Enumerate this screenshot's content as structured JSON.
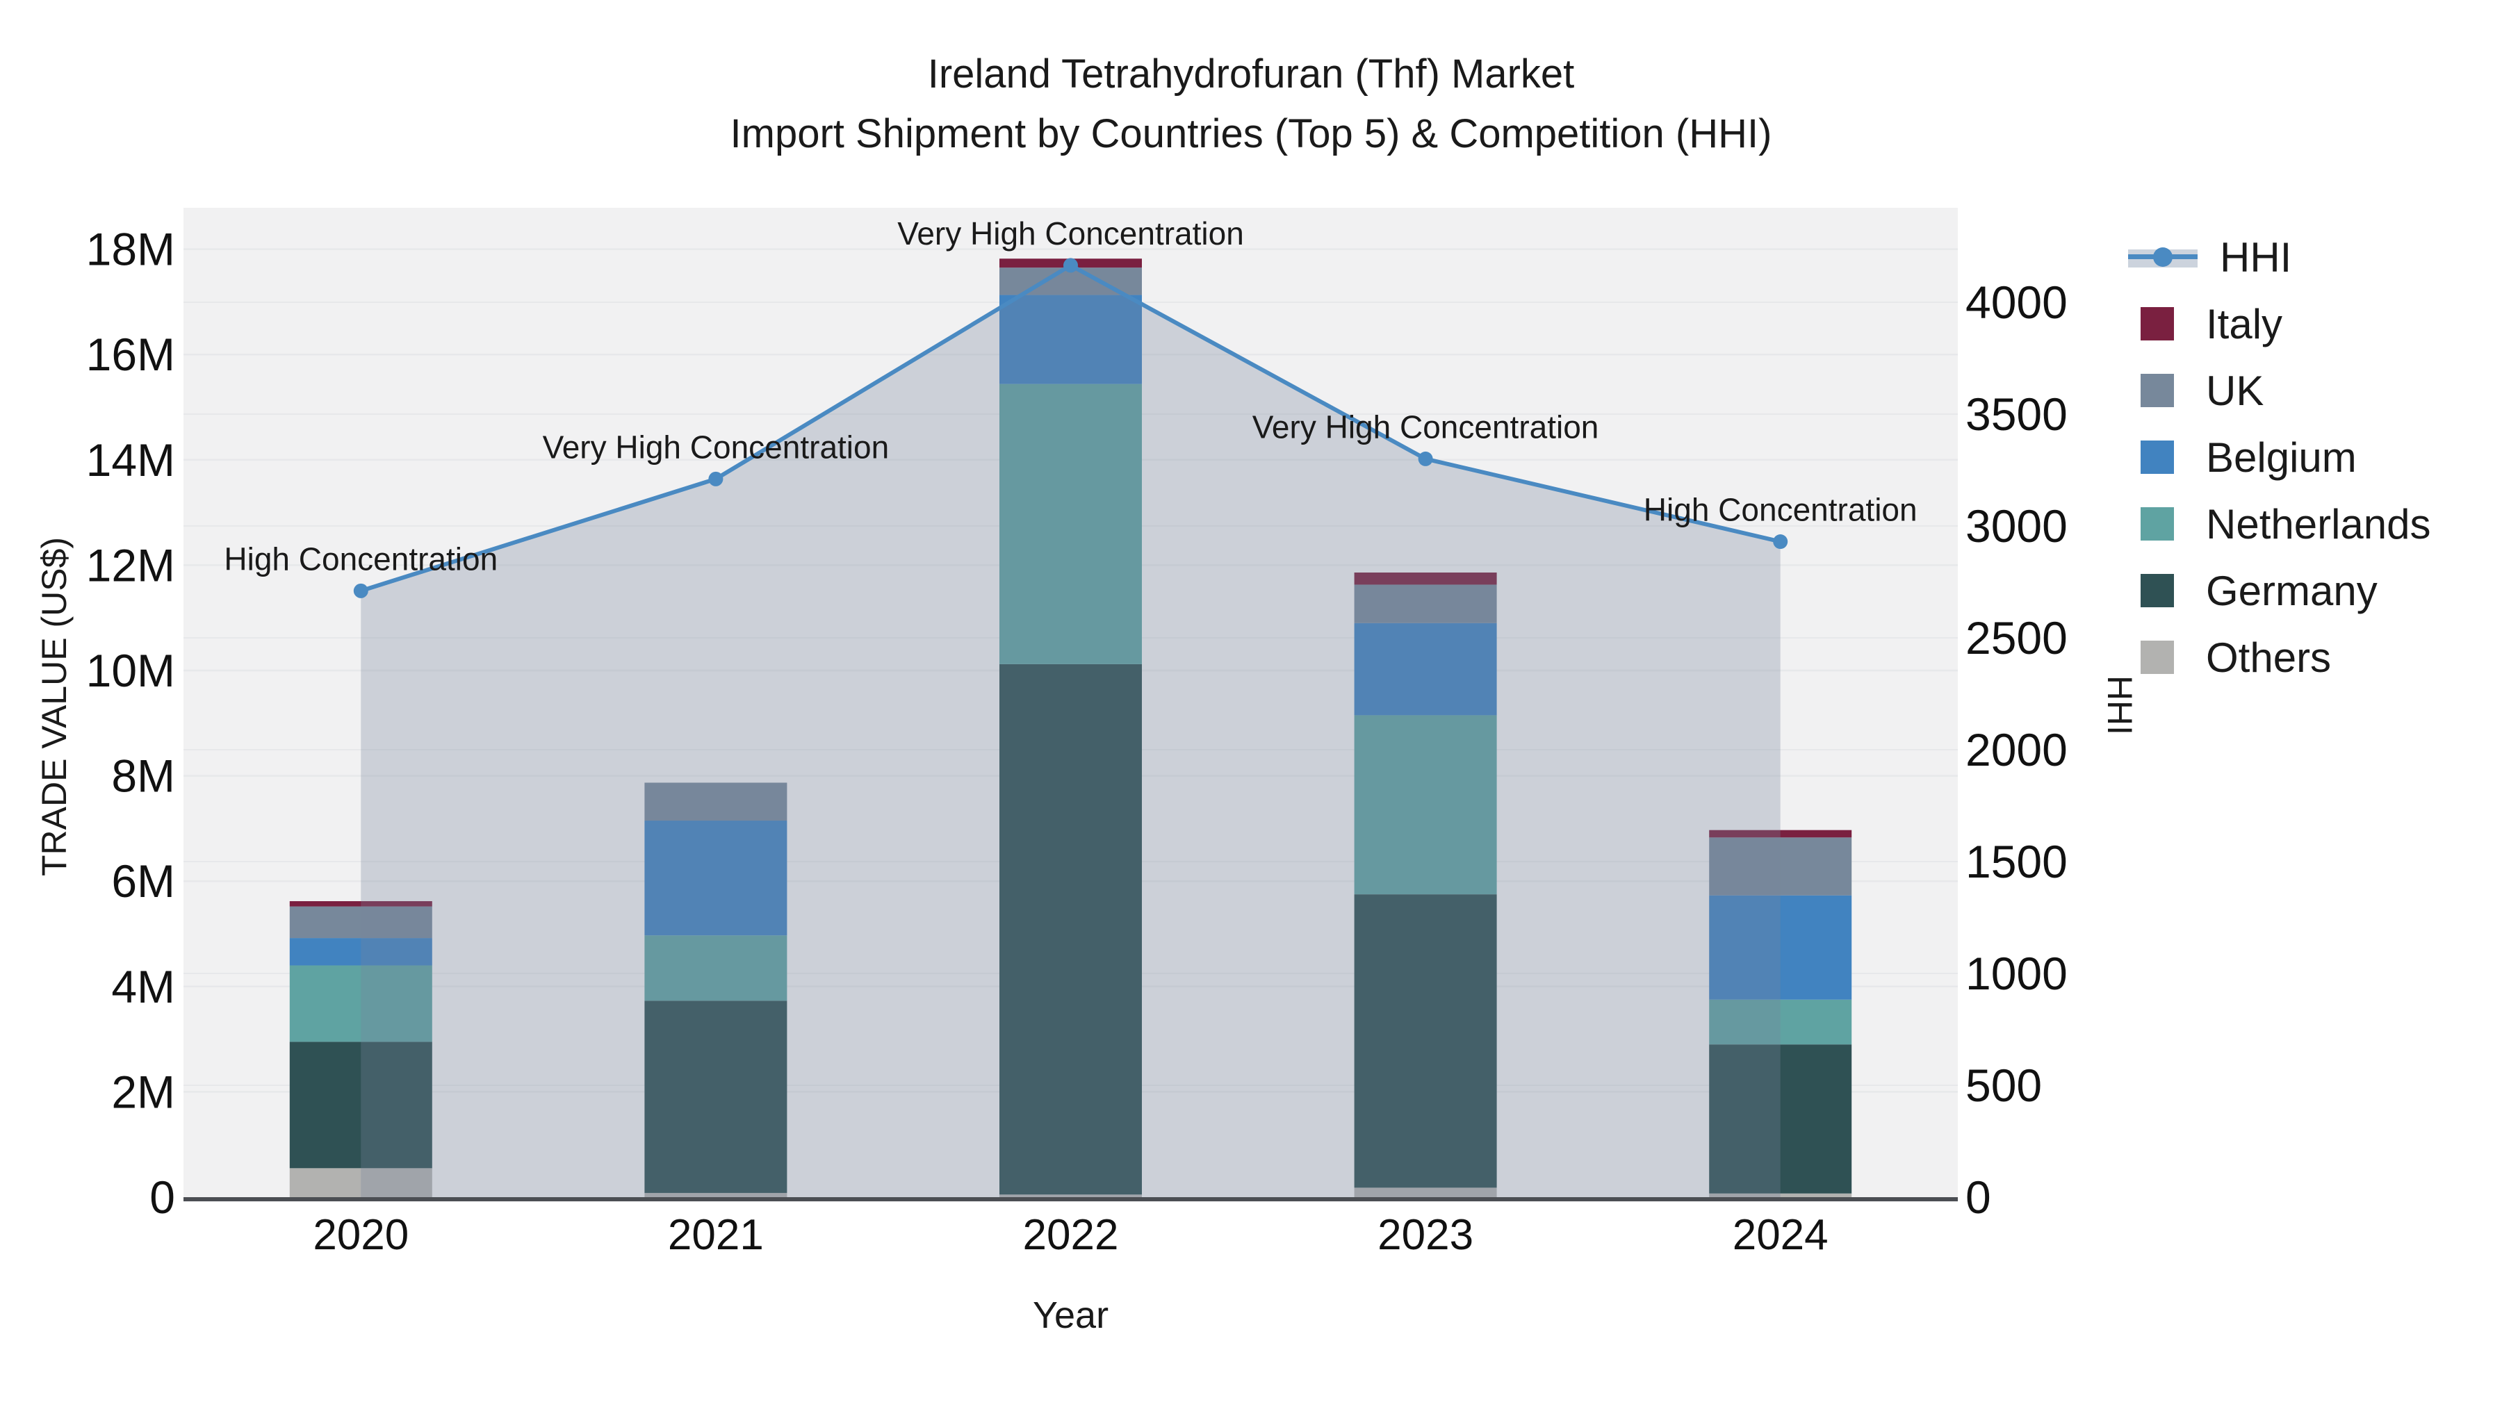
{
  "title": {
    "line1": "Ireland Tetrahydrofuran (Thf) Market",
    "line2": "Import Shipment by Countries (Top 5) & Competition (HHI)"
  },
  "colors": {
    "plot_bg": "#f1f1f2",
    "gridline": "#e7e8ea",
    "axis_line": "#4b4e53",
    "text": "#1a1a1a",
    "hhi_line": "#4a8ac2",
    "area_fill": "rgba(120,132,155,0.30)"
  },
  "chart_data": {
    "type": "combo: stacked bar (trade value, US$ millions) + line on secondary axis (HHI) with area fill",
    "x": [
      "2020",
      "2021",
      "2022",
      "2023",
      "2024"
    ],
    "bar_unit": "millions US$",
    "bar_stack_order_bottom_to_top": [
      "Others",
      "Germany",
      "Netherlands",
      "Belgium",
      "UK",
      "Italy"
    ],
    "series": [
      {
        "name": "Others",
        "color": "#b2b2b0",
        "values": [
          0.55,
          0.08,
          0.05,
          0.18,
          0.07
        ]
      },
      {
        "name": "Germany",
        "color": "#2f5154",
        "values": [
          2.4,
          3.65,
          10.07,
          5.57,
          2.83
        ]
      },
      {
        "name": "Netherlands",
        "color": "#5fa3a2",
        "values": [
          1.45,
          1.24,
          5.32,
          3.4,
          0.85
        ]
      },
      {
        "name": "Belgium",
        "color": "#4183c0",
        "values": [
          0.52,
          2.18,
          1.69,
          1.75,
          1.98
        ]
      },
      {
        "name": "UK",
        "color": "#77889b",
        "values": [
          0.6,
          0.72,
          0.52,
          0.73,
          1.1
        ]
      },
      {
        "name": "Italy",
        "color": "#7a2040",
        "values": [
          0.1,
          0.0,
          0.17,
          0.23,
          0.14
        ]
      }
    ],
    "line_series": {
      "name": "HHI",
      "color": "#4a8ac2",
      "values": [
        2710,
        3210,
        4165,
        3300,
        2930
      ],
      "area_fill": true
    },
    "annotations": [
      "High Concentration",
      "Very High Concentration",
      "Very High Concentration",
      "Very High Concentration",
      "High Concentration"
    ],
    "left_axis": {
      "label": "TRADE VALUE (US$)",
      "tick_labels": [
        "0",
        "2M",
        "4M",
        "6M",
        "8M",
        "10M",
        "12M",
        "14M",
        "16M",
        "18M"
      ],
      "tick_values": [
        0,
        2,
        4,
        6,
        8,
        10,
        12,
        14,
        16,
        18
      ],
      "range": [
        0,
        18.8
      ],
      "grid": true
    },
    "right_axis": {
      "label": "HHI",
      "tick_labels": [
        "0",
        "500",
        "1000",
        "1500",
        "2000",
        "2500",
        "3000",
        "3500",
        "4000"
      ],
      "tick_values": [
        0,
        500,
        1000,
        1500,
        2000,
        2500,
        3000,
        3500,
        4000
      ],
      "range": [
        0,
        4400
      ],
      "grid": true
    },
    "x_axis": {
      "label": "Year"
    },
    "legend_order_top_to_bottom": [
      "HHI",
      "Italy",
      "UK",
      "Belgium",
      "Netherlands",
      "Germany",
      "Others"
    ],
    "legend_position": "right"
  }
}
